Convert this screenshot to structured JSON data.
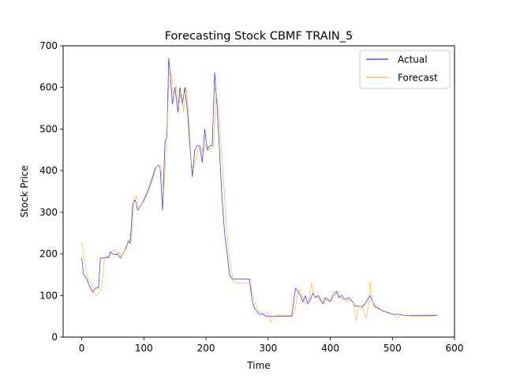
{
  "chart_data": {
    "type": "line",
    "title": "Forecasting Stock CBMF TRAIN_5",
    "xlabel": "Time",
    "ylabel": "Stock Price",
    "xlim": [
      -30,
      600
    ],
    "ylim": [
      0,
      700
    ],
    "xticks": [
      0,
      100,
      200,
      300,
      400,
      500,
      600
    ],
    "yticks": [
      0,
      100,
      200,
      300,
      400,
      500,
      600,
      700
    ],
    "grid": false,
    "legend_position": "top-right",
    "series": [
      {
        "name": "Actual",
        "color": "#0000ff",
        "points": [
          [
            0,
            190
          ],
          [
            3,
            150
          ],
          [
            8,
            140
          ],
          [
            12,
            125
          ],
          [
            15,
            115
          ],
          [
            18,
            108
          ],
          [
            22,
            118
          ],
          [
            27,
            118
          ],
          [
            30,
            190
          ],
          [
            35,
            190
          ],
          [
            40,
            193
          ],
          [
            43,
            190
          ],
          [
            46,
            205
          ],
          [
            50,
            200
          ],
          [
            55,
            198
          ],
          [
            58,
            200
          ],
          [
            62,
            190
          ],
          [
            66,
            200
          ],
          [
            70,
            210
          ],
          [
            75,
            232
          ],
          [
            78,
            225
          ],
          [
            82,
            320
          ],
          [
            86,
            330
          ],
          [
            90,
            305
          ],
          [
            95,
            315
          ],
          [
            100,
            330
          ],
          [
            106,
            350
          ],
          [
            112,
            375
          ],
          [
            118,
            405
          ],
          [
            122,
            412
          ],
          [
            126,
            410
          ],
          [
            130,
            305
          ],
          [
            134,
            470
          ],
          [
            137,
            480
          ],
          [
            140,
            670
          ],
          [
            142,
            640
          ],
          [
            146,
            560
          ],
          [
            150,
            600
          ],
          [
            155,
            540
          ],
          [
            158,
            600
          ],
          [
            162,
            560
          ],
          [
            166,
            600
          ],
          [
            170,
            545
          ],
          [
            174,
            460
          ],
          [
            178,
            385
          ],
          [
            182,
            450
          ],
          [
            186,
            460
          ],
          [
            190,
            460
          ],
          [
            194,
            420
          ],
          [
            198,
            500
          ],
          [
            202,
            450
          ],
          [
            206,
            460
          ],
          [
            210,
            460
          ],
          [
            214,
            635
          ],
          [
            218,
            550
          ],
          [
            222,
            440
          ],
          [
            226,
            330
          ],
          [
            230,
            250
          ],
          [
            234,
            200
          ],
          [
            238,
            150
          ],
          [
            242,
            140
          ],
          [
            246,
            140
          ],
          [
            252,
            140
          ],
          [
            258,
            140
          ],
          [
            264,
            140
          ],
          [
            270,
            140
          ],
          [
            274,
            90
          ],
          [
            278,
            70
          ],
          [
            282,
            62
          ],
          [
            286,
            55
          ],
          [
            292,
            55
          ],
          [
            298,
            50
          ],
          [
            304,
            50
          ],
          [
            310,
            50
          ],
          [
            320,
            50
          ],
          [
            330,
            50
          ],
          [
            338,
            50
          ],
          [
            344,
            118
          ],
          [
            348,
            110
          ],
          [
            352,
            100
          ],
          [
            356,
            85
          ],
          [
            360,
            100
          ],
          [
            364,
            80
          ],
          [
            368,
            90
          ],
          [
            372,
            105
          ],
          [
            376,
            95
          ],
          [
            380,
            100
          ],
          [
            384,
            90
          ],
          [
            388,
            80
          ],
          [
            392,
            95
          ],
          [
            396,
            90
          ],
          [
            400,
            85
          ],
          [
            404,
            100
          ],
          [
            410,
            110
          ],
          [
            414,
            95
          ],
          [
            418,
            100
          ],
          [
            424,
            90
          ],
          [
            430,
            95
          ],
          [
            436,
            85
          ],
          [
            440,
            75
          ],
          [
            446,
            75
          ],
          [
            450,
            72
          ],
          [
            456,
            80
          ],
          [
            460,
            90
          ],
          [
            464,
            100
          ],
          [
            468,
            85
          ],
          [
            472,
            75
          ],
          [
            476,
            70
          ],
          [
            482,
            65
          ],
          [
            488,
            62
          ],
          [
            494,
            58
          ],
          [
            500,
            55
          ],
          [
            510,
            55
          ],
          [
            520,
            52
          ],
          [
            530,
            52
          ],
          [
            540,
            52
          ],
          [
            550,
            52
          ],
          [
            560,
            52
          ],
          [
            572,
            53
          ]
        ]
      },
      {
        "name": "Forecast",
        "color": "#ffa500",
        "points": [
          [
            0,
            228
          ],
          [
            4,
            190
          ],
          [
            8,
            150
          ],
          [
            12,
            135
          ],
          [
            16,
            125
          ],
          [
            20,
            105
          ],
          [
            24,
            100
          ],
          [
            28,
            108
          ],
          [
            32,
            115
          ],
          [
            36,
            185
          ],
          [
            40,
            195
          ],
          [
            44,
            192
          ],
          [
            48,
            205
          ],
          [
            52,
            210
          ],
          [
            56,
            200
          ],
          [
            60,
            205
          ],
          [
            64,
            195
          ],
          [
            68,
            205
          ],
          [
            72,
            215
          ],
          [
            76,
            235
          ],
          [
            80,
            232
          ],
          [
            84,
            335
          ],
          [
            88,
            340
          ],
          [
            92,
            310
          ],
          [
            96,
            318
          ],
          [
            102,
            332
          ],
          [
            108,
            352
          ],
          [
            114,
            378
          ],
          [
            120,
            408
          ],
          [
            124,
            415
          ],
          [
            128,
            395
          ],
          [
            132,
            345
          ],
          [
            136,
            465
          ],
          [
            140,
            600
          ],
          [
            144,
            635
          ],
          [
            148,
            580
          ],
          [
            152,
            605
          ],
          [
            156,
            555
          ],
          [
            160,
            590
          ],
          [
            164,
            540
          ],
          [
            168,
            600
          ],
          [
            172,
            540
          ],
          [
            176,
            420
          ],
          [
            180,
            400
          ],
          [
            184,
            430
          ],
          [
            188,
            455
          ],
          [
            192,
            455
          ],
          [
            196,
            440
          ],
          [
            200,
            470
          ],
          [
            204,
            450
          ],
          [
            208,
            455
          ],
          [
            212,
            460
          ],
          [
            216,
            580
          ],
          [
            220,
            560
          ],
          [
            224,
            470
          ],
          [
            228,
            380
          ],
          [
            232,
            290
          ],
          [
            236,
            210
          ],
          [
            240,
            165
          ],
          [
            244,
            135
          ],
          [
            248,
            130
          ],
          [
            254,
            130
          ],
          [
            260,
            130
          ],
          [
            266,
            130
          ],
          [
            272,
            125
          ],
          [
            276,
            95
          ],
          [
            280,
            78
          ],
          [
            284,
            65
          ],
          [
            288,
            60
          ],
          [
            294,
            57
          ],
          [
            300,
            60
          ],
          [
            304,
            35
          ],
          [
            308,
            50
          ],
          [
            314,
            52
          ],
          [
            322,
            52
          ],
          [
            332,
            52
          ],
          [
            340,
            55
          ],
          [
            344,
            70
          ],
          [
            348,
            110
          ],
          [
            352,
            112
          ],
          [
            356,
            95
          ],
          [
            360,
            80
          ],
          [
            366,
            92
          ],
          [
            370,
            130
          ],
          [
            374,
            100
          ],
          [
            378,
            95
          ],
          [
            382,
            100
          ],
          [
            386,
            92
          ],
          [
            390,
            80
          ],
          [
            396,
            95
          ],
          [
            400,
            85
          ],
          [
            404,
            92
          ],
          [
            410,
            105
          ],
          [
            414,
            108
          ],
          [
            418,
            90
          ],
          [
            422,
            92
          ],
          [
            428,
            85
          ],
          [
            432,
            90
          ],
          [
            438,
            80
          ],
          [
            442,
            40
          ],
          [
            446,
            75
          ],
          [
            452,
            70
          ],
          [
            458,
            45
          ],
          [
            462,
            80
          ],
          [
            464,
            135
          ],
          [
            468,
            85
          ],
          [
            472,
            70
          ],
          [
            478,
            72
          ],
          [
            484,
            62
          ],
          [
            490,
            62
          ],
          [
            496,
            58
          ],
          [
            502,
            55
          ],
          [
            508,
            45
          ],
          [
            514,
            55
          ],
          [
            522,
            52
          ],
          [
            530,
            50
          ],
          [
            540,
            50
          ],
          [
            550,
            50
          ],
          [
            560,
            50
          ],
          [
            572,
            52
          ]
        ]
      }
    ]
  }
}
